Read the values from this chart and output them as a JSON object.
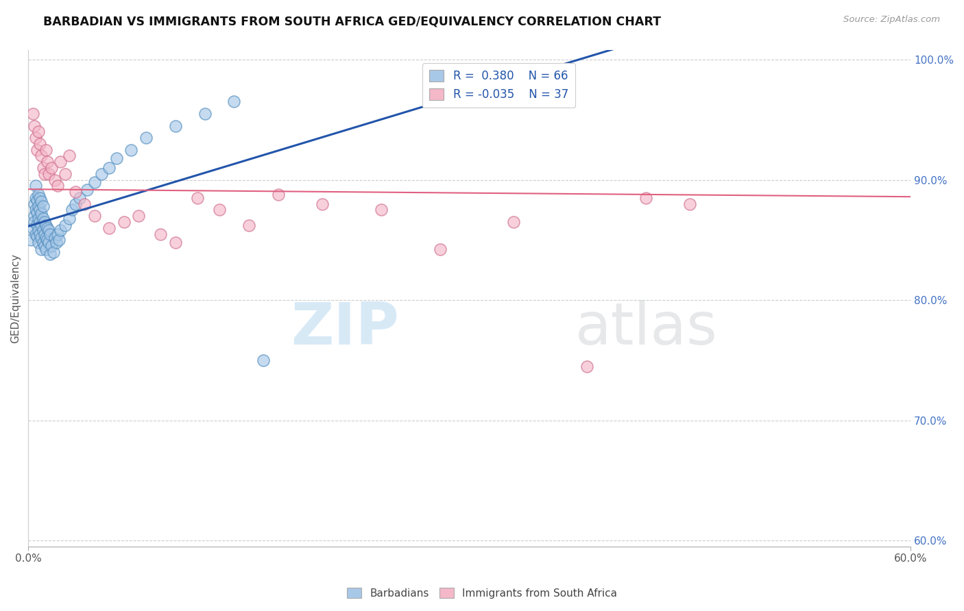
{
  "title": "BARBADIAN VS IMMIGRANTS FROM SOUTH AFRICA GED/EQUIVALENCY CORRELATION CHART",
  "source_text": "Source: ZipAtlas.com",
  "ylabel": "GED/Equivalency",
  "xlim": [
    0.0,
    0.6
  ],
  "ylim": [
    0.595,
    1.008
  ],
  "x_ticks": [
    0.0,
    0.6
  ],
  "x_tick_labels": [
    "0.0%",
    "60.0%"
  ],
  "y_tick_labels_right": [
    "60.0%",
    "70.0%",
    "80.0%",
    "90.0%",
    "100.0%"
  ],
  "y_ticks_right": [
    0.6,
    0.7,
    0.8,
    0.9,
    1.0
  ],
  "r_blue": 0.38,
  "n_blue": 66,
  "r_pink": -0.035,
  "n_pink": 37,
  "blue_dot_color": "#a8c8e8",
  "blue_edge_color": "#5590c0",
  "pink_dot_color": "#f4b8c8",
  "pink_edge_color": "#d07090",
  "blue_line_color": "#2255aa",
  "pink_line_color": "#e06080",
  "legend_blue_fill": "#a8c8e8",
  "legend_pink_fill": "#f4b8c8",
  "watermark_color": "#d0e8f5",
  "background_color": "#ffffff",
  "grid_color": "#cccccc",
  "blue_points_x": [
    0.002,
    0.003,
    0.004,
    0.004,
    0.004,
    0.005,
    0.005,
    0.005,
    0.005,
    0.006,
    0.006,
    0.006,
    0.006,
    0.007,
    0.007,
    0.007,
    0.007,
    0.007,
    0.008,
    0.008,
    0.008,
    0.008,
    0.009,
    0.009,
    0.009,
    0.009,
    0.009,
    0.01,
    0.01,
    0.01,
    0.01,
    0.011,
    0.011,
    0.011,
    0.012,
    0.012,
    0.012,
    0.013,
    0.013,
    0.014,
    0.014,
    0.015,
    0.015,
    0.016,
    0.017,
    0.018,
    0.019,
    0.02,
    0.021,
    0.022,
    0.025,
    0.028,
    0.03,
    0.032,
    0.035,
    0.04,
    0.045,
    0.05,
    0.055,
    0.06,
    0.07,
    0.08,
    0.1,
    0.12,
    0.14,
    0.16
  ],
  "blue_points_y": [
    0.85,
    0.86,
    0.87,
    0.88,
    0.865,
    0.875,
    0.885,
    0.855,
    0.895,
    0.863,
    0.873,
    0.883,
    0.853,
    0.858,
    0.868,
    0.878,
    0.888,
    0.848,
    0.855,
    0.865,
    0.875,
    0.885,
    0.852,
    0.862,
    0.872,
    0.882,
    0.842,
    0.848,
    0.858,
    0.868,
    0.878,
    0.845,
    0.855,
    0.865,
    0.842,
    0.852,
    0.862,
    0.85,
    0.86,
    0.848,
    0.858,
    0.855,
    0.838,
    0.845,
    0.84,
    0.852,
    0.848,
    0.855,
    0.85,
    0.858,
    0.862,
    0.868,
    0.875,
    0.88,
    0.885,
    0.892,
    0.898,
    0.905,
    0.91,
    0.918,
    0.925,
    0.935,
    0.945,
    0.955,
    0.965,
    0.75
  ],
  "pink_points_x": [
    0.003,
    0.004,
    0.005,
    0.006,
    0.007,
    0.008,
    0.009,
    0.01,
    0.011,
    0.012,
    0.013,
    0.014,
    0.016,
    0.018,
    0.02,
    0.022,
    0.025,
    0.028,
    0.032,
    0.038,
    0.045,
    0.055,
    0.065,
    0.075,
    0.09,
    0.1,
    0.115,
    0.13,
    0.15,
    0.17,
    0.2,
    0.24,
    0.28,
    0.33,
    0.38,
    0.42,
    0.45
  ],
  "pink_points_y": [
    0.955,
    0.945,
    0.935,
    0.925,
    0.94,
    0.93,
    0.92,
    0.91,
    0.905,
    0.925,
    0.915,
    0.905,
    0.91,
    0.9,
    0.895,
    0.915,
    0.905,
    0.92,
    0.89,
    0.88,
    0.87,
    0.86,
    0.865,
    0.87,
    0.855,
    0.848,
    0.885,
    0.875,
    0.862,
    0.888,
    0.88,
    0.875,
    0.842,
    0.865,
    0.745,
    0.885,
    0.88
  ],
  "watermark_zip": "ZIP",
  "watermark_atlas": "atlas"
}
